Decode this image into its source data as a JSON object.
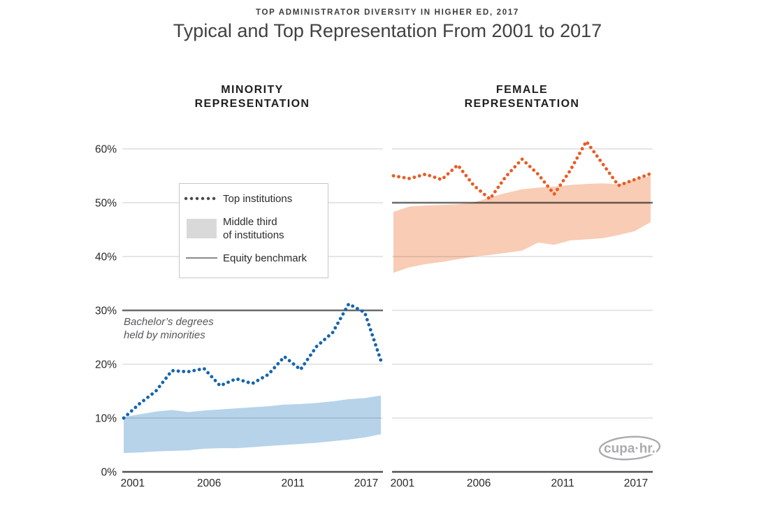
{
  "header": {
    "eyebrow": "TOP ADMINISTRATOR DIVERSITY IN HIGHER ED, 2017",
    "title": "Typical and Top Representation From 2001 to 2017"
  },
  "legend": {
    "top_institutions": "Top institutions",
    "middle_third_line1": "Middle third",
    "middle_third_line2": "of institutions",
    "equity_benchmark": "Equity benchmark"
  },
  "logo": {
    "text": "cupa·hr."
  },
  "colors": {
    "gridline": "#d7d7d7",
    "benchmark_line": "#6b6b6b",
    "axis_line": "#515153",
    "tick_text": "#29292b"
  },
  "chart_data": [
    {
      "type": "line",
      "panel_title_line1": "MINORITY",
      "panel_title_line2": "REPRESENTATION",
      "x": [
        2001,
        2002,
        2003,
        2004,
        2005,
        2006,
        2007,
        2008,
        2009,
        2010,
        2011,
        2012,
        2013,
        2014,
        2015,
        2016,
        2017
      ],
      "x_tick_labels": [
        "2001",
        "2006",
        "2011",
        "2017"
      ],
      "y_tick_labels": [
        "0%",
        "10%",
        "20%",
        "30%",
        "40%",
        "50%",
        "60%"
      ],
      "ylim": [
        0,
        65
      ],
      "grid": true,
      "equity_benchmark": 30,
      "benchmark_note_line1": "Bachelor’s degrees",
      "benchmark_note_line2": "held by minorities",
      "colors": {
        "line": "#1565ae",
        "band": "#b6d3ea"
      },
      "series": [
        {
          "name": "Top institutions",
          "style": "dotted",
          "values": [
            10.0,
            12.7,
            15.0,
            18.8,
            18.6,
            19.2,
            16.0,
            17.3,
            16.4,
            18.1,
            21.4,
            19.0,
            23.3,
            25.9,
            31.2,
            29.6,
            20.7
          ]
        },
        {
          "name": "Middle third of institutions",
          "style": "band",
          "lower": [
            3.5,
            3.6,
            3.8,
            3.9,
            4.0,
            4.3,
            4.4,
            4.4,
            4.6,
            4.8,
            5.0,
            5.2,
            5.4,
            5.7,
            6.0,
            6.4,
            7.0
          ],
          "upper": [
            10.2,
            10.7,
            11.2,
            11.5,
            11.1,
            11.4,
            11.6,
            11.8,
            12.0,
            12.2,
            12.5,
            12.6,
            12.8,
            13.1,
            13.5,
            13.7,
            14.2
          ]
        },
        {
          "name": "Equity benchmark",
          "style": "hline",
          "value": 30
        }
      ]
    },
    {
      "type": "line",
      "panel_title_line1": "FEMALE",
      "panel_title_line2": "REPRESENTATION",
      "x": [
        2001,
        2002,
        2003,
        2004,
        2005,
        2006,
        2007,
        2008,
        2009,
        2010,
        2011,
        2012,
        2013,
        2014,
        2015,
        2016,
        2017
      ],
      "x_tick_labels": [
        "2001",
        "2006",
        "2011",
        "2017"
      ],
      "y_tick_labels": [],
      "ylim": [
        0,
        65
      ],
      "grid": true,
      "equity_benchmark": 50,
      "colors": {
        "line": "#e85c25",
        "band": "#f8ccb5"
      },
      "series": [
        {
          "name": "Top institutions",
          "style": "dotted",
          "values": [
            55.0,
            54.5,
            55.3,
            54.3,
            57.0,
            53.2,
            50.7,
            54.9,
            58.1,
            55.3,
            51.6,
            56.0,
            61.4,
            57.3,
            53.2,
            54.3,
            55.4
          ]
        },
        {
          "name": "Middle third of institutions",
          "style": "band",
          "lower": [
            37.0,
            38.0,
            38.6,
            39.0,
            39.5,
            40.0,
            40.3,
            40.7,
            41.1,
            42.6,
            42.2,
            43.0,
            43.2,
            43.4,
            44.0,
            44.7,
            46.4
          ],
          "upper": [
            48.3,
            49.3,
            49.5,
            49.6,
            49.7,
            50.0,
            51.0,
            51.8,
            52.5,
            52.8,
            53.0,
            53.3,
            53.5,
            53.6,
            53.4,
            54.3,
            55.0
          ]
        },
        {
          "name": "Equity benchmark",
          "style": "hline",
          "value": 50
        }
      ]
    }
  ]
}
